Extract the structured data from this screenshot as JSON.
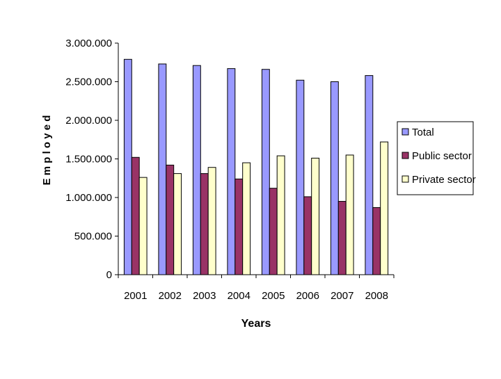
{
  "chart_data": {
    "type": "bar",
    "xlabel": "Years",
    "ylabel": "E m p l o y e d",
    "ylim": [
      0,
      3000000
    ],
    "y_ticks": [
      0,
      500000,
      1000000,
      1500000,
      2000000,
      2500000,
      3000000
    ],
    "y_tick_labels": [
      "0",
      "500.000",
      "1.000.000",
      "1.500.000",
      "2.000.000",
      "2.500.000",
      "3.000.000"
    ],
    "categories": [
      "2001",
      "2002",
      "2003",
      "2004",
      "2005",
      "2006",
      "2007",
      "2008"
    ],
    "grid": false,
    "legend_position": "right",
    "series": [
      {
        "name": "Total",
        "color": "#9999ff",
        "values": [
          2790000,
          2730000,
          2710000,
          2670000,
          2660000,
          2520000,
          2500000,
          2580000
        ]
      },
      {
        "name": "Public sector",
        "color": "#993366",
        "values": [
          1520000,
          1420000,
          1310000,
          1240000,
          1120000,
          1010000,
          950000,
          870000
        ]
      },
      {
        "name": "Private sector",
        "color": "#ffffcc",
        "values": [
          1260000,
          1310000,
          1390000,
          1450000,
          1540000,
          1510000,
          1550000,
          1720000
        ]
      }
    ]
  }
}
